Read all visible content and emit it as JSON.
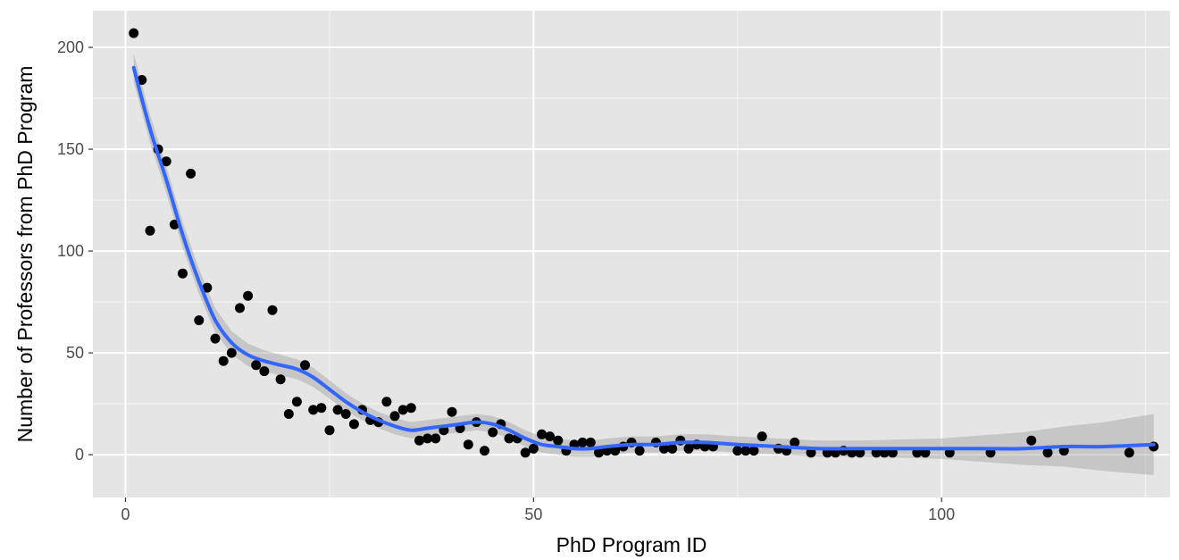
{
  "chart_data": {
    "type": "scatter",
    "title": "",
    "xlabel": "PhD Program ID",
    "ylabel": "Number of Professors from PhD Program",
    "xlim": [
      -4,
      128
    ],
    "ylim": [
      -21,
      218
    ],
    "x_ticks": [
      0,
      50,
      100
    ],
    "y_ticks": [
      0,
      50,
      100,
      150,
      200
    ],
    "x_tick_labels": [
      "0",
      "50",
      "100"
    ],
    "y_tick_labels": [
      "0",
      "50",
      "100",
      "150",
      "200"
    ],
    "grid": true,
    "legend": "none",
    "colors": {
      "panel": "#e5e5e5",
      "grid": "#ffffff",
      "point": "#000000",
      "smooth_line": "#3366ff",
      "confidence_band": "#999999"
    },
    "series": [
      {
        "values": [
          [
            1,
            207
          ],
          [
            2,
            184
          ],
          [
            3,
            110
          ],
          [
            4,
            150
          ],
          [
            5,
            144
          ],
          [
            6,
            113
          ],
          [
            7,
            89
          ],
          [
            8,
            138
          ],
          [
            9,
            66
          ],
          [
            10,
            82
          ],
          [
            11,
            57
          ],
          [
            12,
            46
          ],
          [
            13,
            50
          ],
          [
            14,
            72
          ],
          [
            15,
            78
          ],
          [
            16,
            44
          ],
          [
            17,
            41
          ],
          [
            18,
            71
          ],
          [
            19,
            37
          ],
          [
            20,
            20
          ],
          [
            21,
            26
          ],
          [
            22,
            44
          ],
          [
            23,
            22
          ],
          [
            24,
            23
          ],
          [
            25,
            12
          ],
          [
            26,
            22
          ],
          [
            27,
            20
          ],
          [
            28,
            15
          ],
          [
            29,
            22
          ],
          [
            30,
            17
          ],
          [
            31,
            16
          ],
          [
            32,
            26
          ],
          [
            33,
            19
          ],
          [
            34,
            22
          ],
          [
            35,
            23
          ],
          [
            36,
            7
          ],
          [
            37,
            8
          ],
          [
            38,
            8
          ],
          [
            39,
            12
          ],
          [
            40,
            21
          ],
          [
            41,
            13
          ],
          [
            42,
            5
          ],
          [
            43,
            16
          ],
          [
            44,
            2
          ],
          [
            45,
            11
          ],
          [
            46,
            15
          ],
          [
            47,
            8
          ],
          [
            48,
            8
          ],
          [
            49,
            1
          ],
          [
            50,
            3
          ],
          [
            51,
            10
          ],
          [
            52,
            9
          ],
          [
            53,
            7
          ],
          [
            54,
            2
          ],
          [
            55,
            5
          ],
          [
            56,
            6
          ],
          [
            57,
            6
          ],
          [
            58,
            1
          ],
          [
            59,
            2
          ],
          [
            60,
            2
          ],
          [
            61,
            4
          ],
          [
            62,
            6
          ],
          [
            63,
            2
          ],
          [
            65,
            6
          ],
          [
            66,
            3
          ],
          [
            67,
            3
          ],
          [
            68,
            7
          ],
          [
            69,
            3
          ],
          [
            70,
            5
          ],
          [
            71,
            4
          ],
          [
            72,
            4
          ],
          [
            75,
            2
          ],
          [
            76,
            2
          ],
          [
            77,
            2
          ],
          [
            78,
            9
          ],
          [
            80,
            3
          ],
          [
            81,
            2
          ],
          [
            82,
            6
          ],
          [
            84,
            1
          ],
          [
            86,
            1
          ],
          [
            87,
            1
          ],
          [
            88,
            2
          ],
          [
            89,
            1
          ],
          [
            90,
            1
          ],
          [
            92,
            1
          ],
          [
            93,
            1
          ],
          [
            94,
            1
          ],
          [
            97,
            1
          ],
          [
            98,
            1
          ],
          [
            101,
            1
          ],
          [
            106,
            1
          ],
          [
            111,
            7
          ],
          [
            113,
            1
          ],
          [
            115,
            2
          ],
          [
            123,
            1
          ],
          [
            126,
            4
          ]
        ]
      }
    ],
    "smooth": {
      "method": "loess",
      "fit": [
        [
          1,
          190
        ],
        [
          3,
          160
        ],
        [
          5,
          135
        ],
        [
          7,
          108
        ],
        [
          9,
          85
        ],
        [
          11,
          66
        ],
        [
          13,
          55
        ],
        [
          15,
          49
        ],
        [
          17,
          46
        ],
        [
          19,
          44
        ],
        [
          21,
          42
        ],
        [
          23,
          38
        ],
        [
          25,
          32
        ],
        [
          27,
          26
        ],
        [
          29,
          21
        ],
        [
          31,
          17
        ],
        [
          33,
          14
        ],
        [
          35,
          12
        ],
        [
          37,
          13
        ],
        [
          39,
          14
        ],
        [
          41,
          15
        ],
        [
          43,
          16
        ],
        [
          45,
          15
        ],
        [
          47,
          12
        ],
        [
          49,
          8
        ],
        [
          51,
          5
        ],
        [
          53,
          4
        ],
        [
          55,
          3
        ],
        [
          57,
          3
        ],
        [
          59,
          4
        ],
        [
          62,
          5
        ],
        [
          65,
          5
        ],
        [
          68,
          6
        ],
        [
          71,
          6
        ],
        [
          75,
          5
        ],
        [
          80,
          4
        ],
        [
          85,
          3
        ],
        [
          90,
          3
        ],
        [
          95,
          3
        ],
        [
          100,
          3
        ],
        [
          105,
          3
        ],
        [
          110,
          3
        ],
        [
          115,
          4
        ],
        [
          120,
          4
        ],
        [
          126,
          5
        ]
      ],
      "band_half_width": [
        [
          1,
          7
        ],
        [
          10,
          6
        ],
        [
          20,
          5
        ],
        [
          30,
          4
        ],
        [
          40,
          4
        ],
        [
          50,
          4
        ],
        [
          60,
          4
        ],
        [
          70,
          4
        ],
        [
          80,
          4
        ],
        [
          90,
          4
        ],
        [
          100,
          5
        ],
        [
          110,
          8
        ],
        [
          118,
          11
        ],
        [
          126,
          15
        ]
      ]
    }
  }
}
